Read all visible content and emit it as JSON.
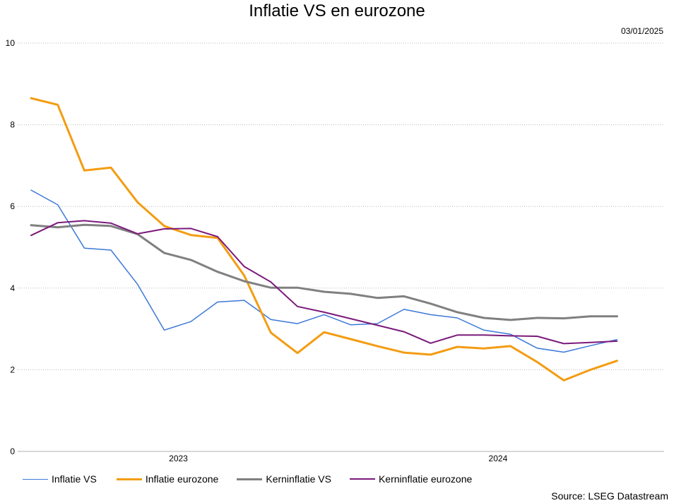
{
  "header": {
    "title": "Inflatie VS en eurozone",
    "date": "03/01/2025"
  },
  "footer": {
    "source": "Source: LSEG Datastream"
  },
  "chart_data": {
    "type": "line",
    "title": "Inflatie VS en eurozone",
    "xlabel": "",
    "ylabel": "",
    "ylim": [
      0,
      10
    ],
    "yticks": [
      "0",
      "2",
      "4",
      "6",
      "8",
      "10"
    ],
    "xticks": [
      "2023",
      "2024"
    ],
    "grid": true,
    "legend_position": "bottom-left",
    "x": [
      "2022-08",
      "2022-09",
      "2022-10",
      "2022-11",
      "2022-12",
      "2023-01",
      "2023-02",
      "2023-03",
      "2023-04",
      "2023-05",
      "2023-06",
      "2023-07",
      "2023-08",
      "2023-09",
      "2023-10",
      "2023-11",
      "2023-12",
      "2024-01",
      "2024-02",
      "2024-03",
      "2024-04",
      "2024-05",
      "2024-06",
      "2024-07",
      "2024-08"
    ],
    "series": [
      {
        "name": "Inflatie VS",
        "color": "#3c78d8",
        "width": 1.5,
        "values": [
          6.4,
          6.04,
          4.98,
          4.93,
          4.09,
          2.97,
          3.18,
          3.66,
          3.7,
          3.23,
          3.13,
          3.35,
          3.1,
          3.13,
          3.48,
          3.35,
          3.27,
          2.97,
          2.87,
          2.53,
          2.43,
          2.59,
          2.74,
          null,
          null
        ]
      },
      {
        "name": "Inflatie eurozone",
        "color": "#f39c12",
        "width": 3,
        "values": [
          8.65,
          8.49,
          6.88,
          6.95,
          6.1,
          5.52,
          5.3,
          5.23,
          4.31,
          2.91,
          2.41,
          2.92,
          2.75,
          2.58,
          2.42,
          2.37,
          2.56,
          2.52,
          2.58,
          2.19,
          1.74,
          2.0,
          2.22,
          null,
          null
        ]
      },
      {
        "name": "Kerninflatie VS",
        "color": "#808080",
        "width": 3,
        "values": [
          5.54,
          5.49,
          5.55,
          5.52,
          5.32,
          4.86,
          4.69,
          4.4,
          4.17,
          4.01,
          4.01,
          3.91,
          3.86,
          3.76,
          3.8,
          3.62,
          3.41,
          3.27,
          3.22,
          3.27,
          3.26,
          3.31,
          3.31,
          null,
          null
        ]
      },
      {
        "name": "Kerninflatie eurozone",
        "color": "#7b1a7b",
        "width": 2,
        "values": [
          5.29,
          5.6,
          5.65,
          5.59,
          5.33,
          5.45,
          5.46,
          5.26,
          4.53,
          4.15,
          3.55,
          3.41,
          3.25,
          3.09,
          2.93,
          2.65,
          2.85,
          2.85,
          2.83,
          2.82,
          2.64,
          2.67,
          2.7,
          null,
          null
        ]
      }
    ]
  }
}
